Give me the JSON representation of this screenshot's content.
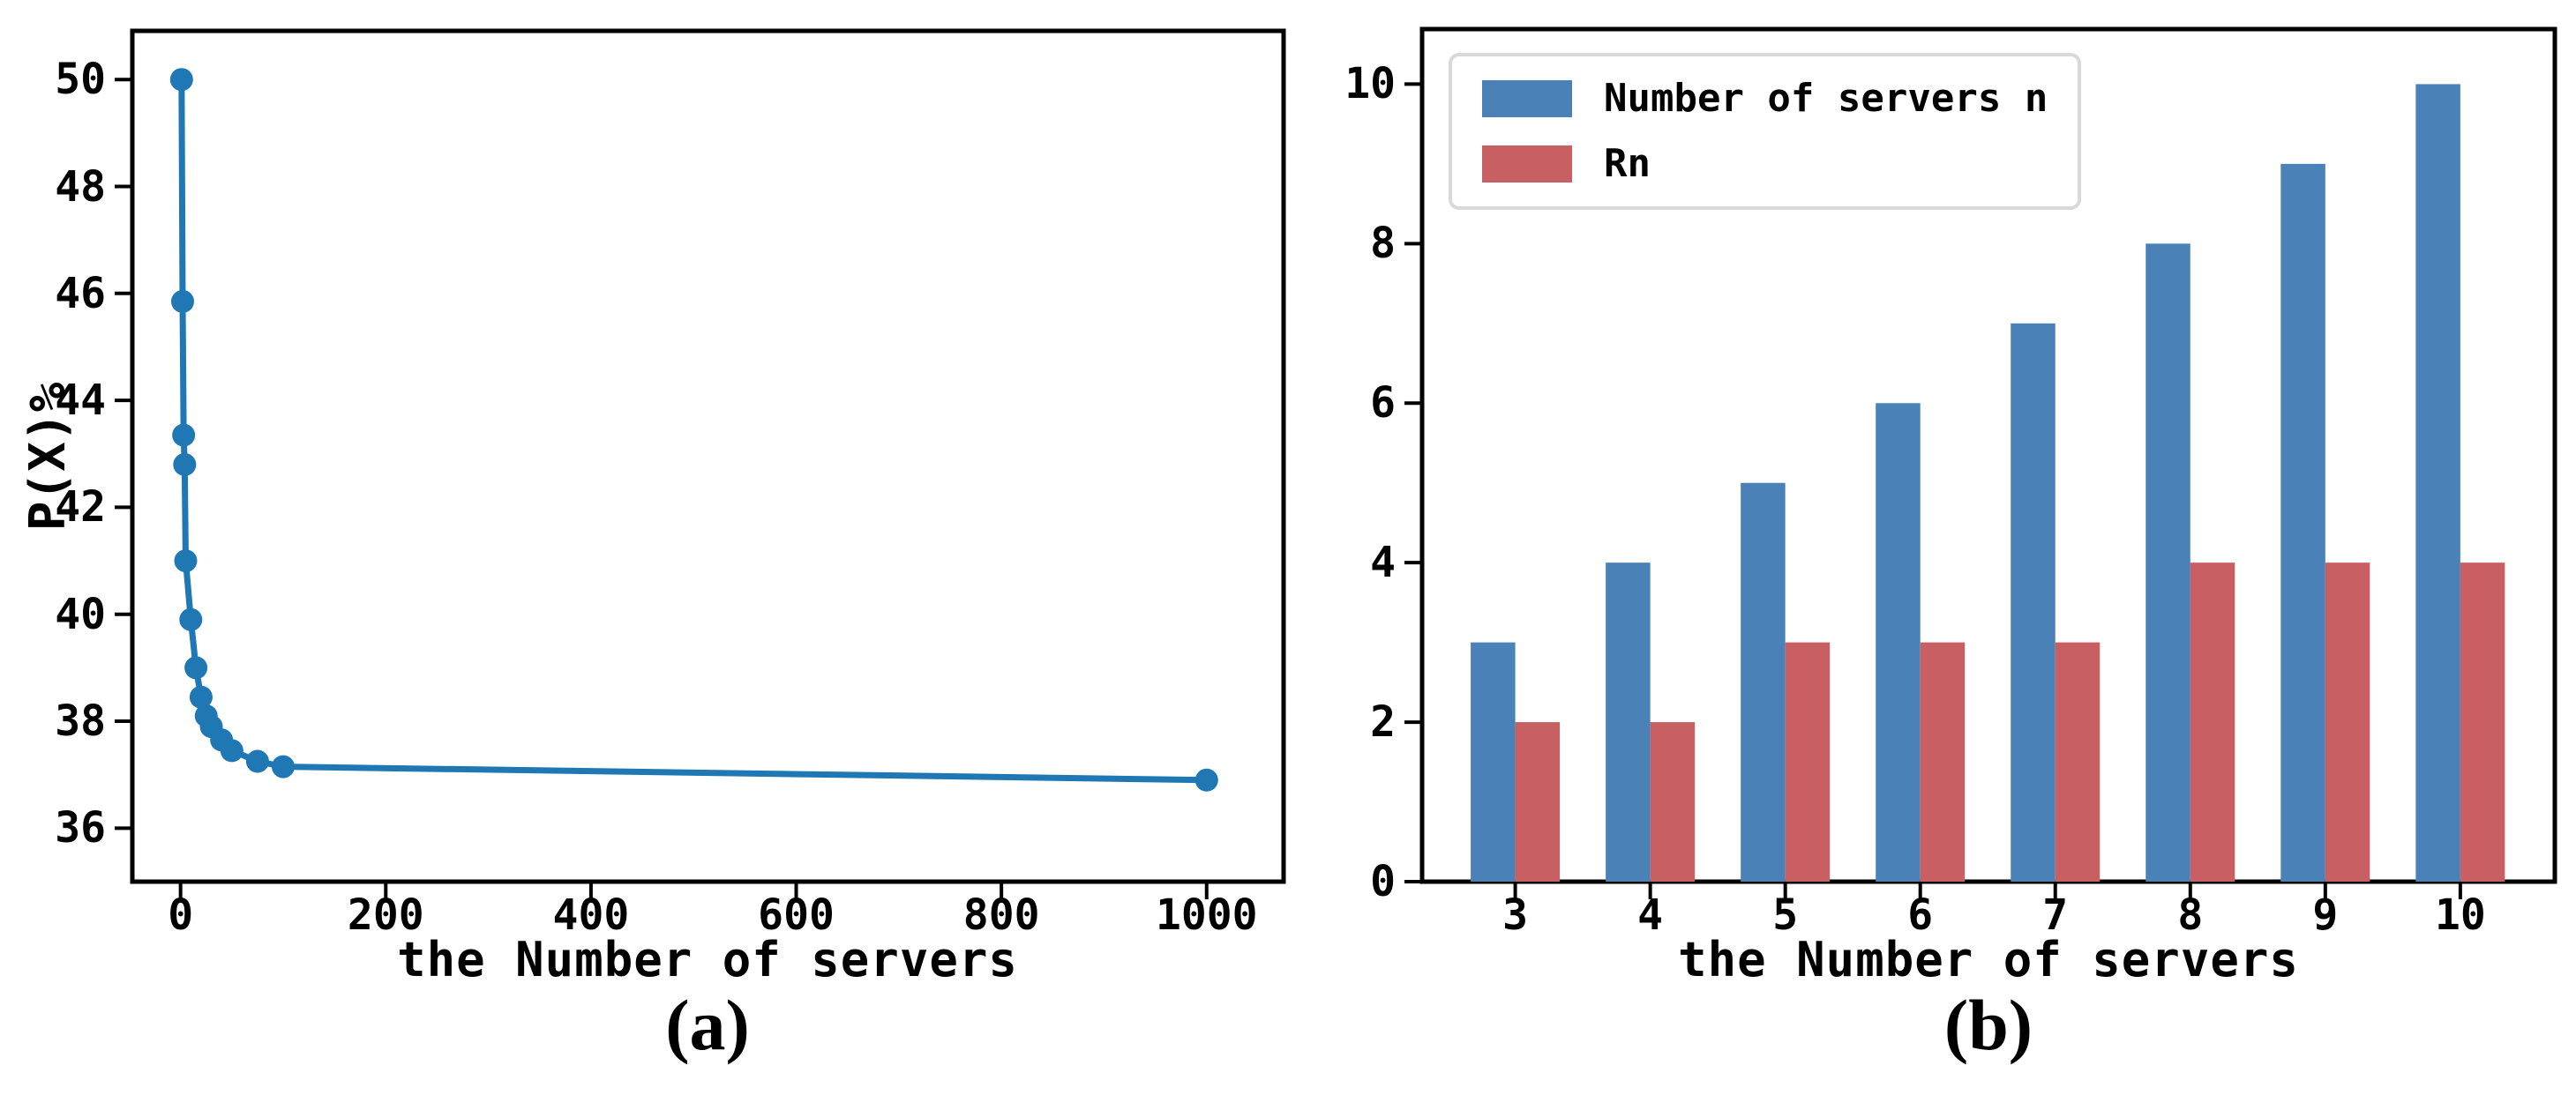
{
  "chart_data": [
    {
      "type": "line",
      "panel": "a",
      "caption": "(a)",
      "title": "",
      "xlabel": "the Number of servers",
      "ylabel": "P(X)%",
      "x": [
        1,
        2,
        3,
        4,
        5,
        10,
        15,
        20,
        25,
        30,
        40,
        50,
        75,
        100,
        1000
      ],
      "y": [
        50.0,
        45.85,
        43.35,
        42.8,
        41.0,
        39.9,
        39.0,
        38.45,
        38.1,
        37.9,
        37.65,
        37.45,
        37.25,
        37.15,
        36.9
      ],
      "color": "#1f77b4",
      "marker": "circle",
      "line_width": 7,
      "x_ticks": [
        0,
        200,
        400,
        600,
        800,
        1000
      ],
      "y_ticks": [
        36,
        38,
        40,
        42,
        44,
        46,
        48,
        50
      ],
      "xlim": [
        -47,
        1075
      ],
      "ylim": [
        35.0,
        50.91
      ],
      "grid": false,
      "legend": null
    },
    {
      "type": "bar",
      "panel": "b",
      "caption": "(b)",
      "title": "",
      "xlabel": "the Number of servers",
      "ylabel": "",
      "categories": [
        3,
        4,
        5,
        6,
        7,
        8,
        9,
        10
      ],
      "series": [
        {
          "name": "Number of servers n",
          "color": "#4a82b8",
          "values": [
            3,
            4,
            5,
            6,
            7,
            8,
            9,
            10
          ]
        },
        {
          "name": "Rn",
          "color": "#c85f63",
          "values": [
            2,
            2,
            3,
            3,
            3,
            4,
            4,
            4
          ]
        }
      ],
      "y_ticks": [
        0,
        2,
        4,
        6,
        8,
        10
      ],
      "xlim": [
        2.31,
        10.7
      ],
      "ylim": [
        0,
        10.69
      ],
      "bar_width_units": 0.33,
      "grid": false,
      "legend_position": "upper left",
      "legend_border_color": "#d9d9d9"
    }
  ]
}
